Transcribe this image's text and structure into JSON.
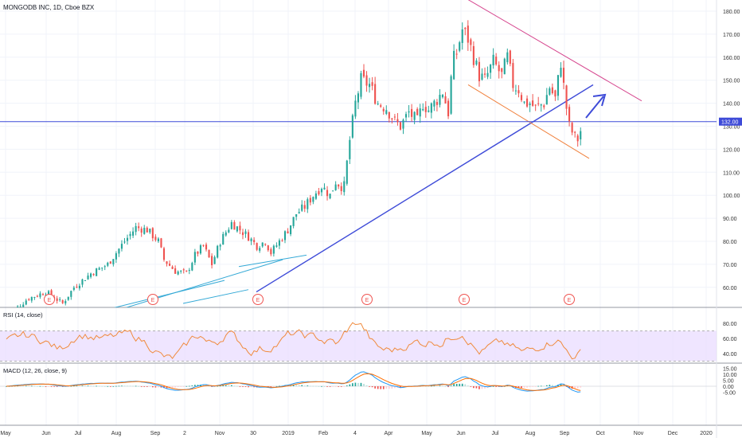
{
  "header": {
    "symbol_title": "MONGODB INC, 1D, Cboe BZX"
  },
  "colors": {
    "up": "#26a69a",
    "down": "#ef5350",
    "price_line": "#3e4bd8",
    "price_tag": "#3e4bd8",
    "trendline": "#3e4bd8",
    "upper_channel": "#d6478f",
    "lower_channel": "#f0803c",
    "cyan_line": "#34a9d6",
    "rsi_line": "#f08a3c",
    "rsi_band": "#eadcff",
    "macd_line": "#2196f3",
    "signal_line": "#ff6d00",
    "hist_pos": "#26a69a",
    "hist_pos_light": "#b2dfdb",
    "hist_neg": "#ef5350",
    "hist_neg_light": "#ffcdd2",
    "earnings_marker": "#ef5350",
    "grid": "#f0f3fa"
  },
  "price_axis": {
    "ticks": [
      "180.00",
      "170.00",
      "160.00",
      "150.00",
      "140.00",
      "130.00",
      "120.00",
      "110.00",
      "100.00",
      "90.00",
      "80.00",
      "70.00",
      "60.00"
    ],
    "current_price_label": "132.00"
  },
  "rsi_pane": {
    "title": "RSI (14, close)",
    "ticks": [
      "80.00",
      "60.00",
      "40.00"
    ]
  },
  "macd_pane": {
    "title": "MACD (12, 26, close, 9)",
    "ticks": [
      "15.00",
      "10.00",
      "5.00",
      "0.00",
      "-5.00"
    ]
  },
  "time_axis": {
    "labels": [
      "May",
      "Jun",
      "Jul",
      "Aug",
      "Sep",
      "2",
      "Nov",
      "30",
      "2019",
      "Feb",
      "4",
      "Apr",
      "May",
      "Jun",
      "Jul",
      "Aug",
      "Sep",
      "Oct",
      "Nov",
      "Dec",
      "2020"
    ]
  },
  "earnings_marker_label": "E",
  "chart_data": [
    {
      "type": "candlestick",
      "title": "MONGODB INC, 1D, Cboe BZX",
      "ylim": [
        53,
        185
      ],
      "current_price": 132.0,
      "key_levels_approx": [
        {
          "period": "May 2018",
          "close": 47
        },
        {
          "period": "Jun 2018",
          "close": 58
        },
        {
          "period": "Jul 2018",
          "close": 66
        },
        {
          "period": "Aug 2018",
          "close": 75
        },
        {
          "period": "Sep 2018",
          "close": 84
        },
        {
          "period": "Oct 2018",
          "close": 70
        },
        {
          "period": "Nov 2018",
          "close": 82
        },
        {
          "period": "Dec 2018",
          "close": 82
        },
        {
          "period": "Jan 2019",
          "close": 76
        },
        {
          "period": "Feb 2019",
          "close": 100
        },
        {
          "period": "Mar 2019",
          "close": 150
        },
        {
          "period": "Apr 2019",
          "close": 140
        },
        {
          "period": "May 2019",
          "close": 132
        },
        {
          "period": "Jun 2019",
          "close": 165
        },
        {
          "period": "Jul 2019",
          "close": 155
        },
        {
          "period": "Aug 2019",
          "close": 140
        },
        {
          "period": "Sep 2019",
          "close": 132
        }
      ]
    },
    {
      "type": "line",
      "title": "RSI (14, close)",
      "ylim": [
        20,
        90
      ],
      "guides": [
        70,
        30
      ]
    },
    {
      "type": "bar",
      "title": "MACD (12, 26, close, 9)",
      "ylim": [
        -6,
        16
      ]
    }
  ]
}
